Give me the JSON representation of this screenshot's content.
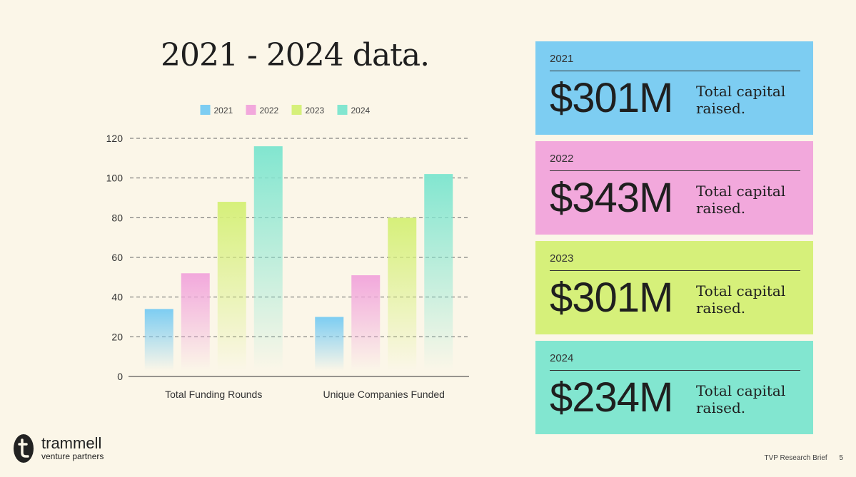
{
  "title": "2021 - 2024 data.",
  "chart_data": {
    "type": "bar",
    "categories": [
      "Total Funding Rounds",
      "Unique Companies Funded"
    ],
    "series": [
      {
        "name": "2021",
        "values": [
          34,
          30
        ],
        "color": "#7dcdf2"
      },
      {
        "name": "2022",
        "values": [
          52,
          51
        ],
        "color": "#f2a8dc"
      },
      {
        "name": "2023",
        "values": [
          88,
          80
        ],
        "color": "#d6f07a"
      },
      {
        "name": "2024",
        "values": [
          116,
          102
        ],
        "color": "#82e6d0"
      }
    ],
    "yticks": [
      "0",
      "20",
      "40",
      "60",
      "80",
      "100",
      "120"
    ],
    "ylim": [
      0,
      120
    ],
    "grid": true,
    "legend_position": "top"
  },
  "cards": [
    {
      "year": "2021",
      "amount": "$301M",
      "desc": "Total capital raised.",
      "color": "#7dcdf2"
    },
    {
      "year": "2022",
      "amount": "$343M",
      "desc": "Total capital raised.",
      "color": "#f2a8dc"
    },
    {
      "year": "2023",
      "amount": "$301M",
      "desc": "Total capital raised.",
      "color": "#d6f07a"
    },
    {
      "year": "2024",
      "amount": "$234M",
      "desc": "Total capital raised.",
      "color": "#82e6d0"
    }
  ],
  "logo": {
    "name": "trammell",
    "sub": "venture partners"
  },
  "footer": {
    "text": "TVP Research Brief",
    "page": "5"
  }
}
